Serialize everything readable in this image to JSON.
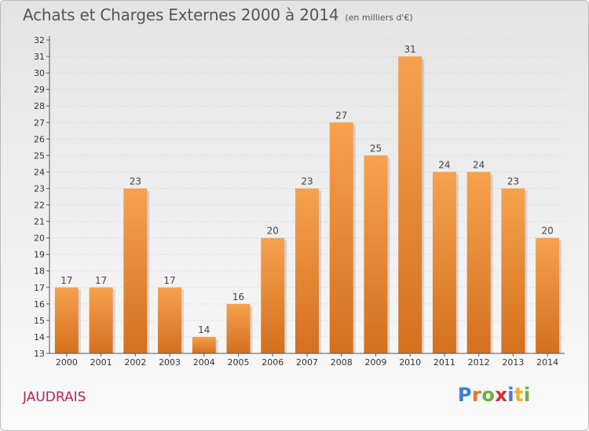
{
  "title": "Achats et Charges Externes 2000 à 2014",
  "unit_note": "(en milliers d'€)",
  "town": "JAUDRAIS",
  "logo": {
    "letters": [
      "P",
      "r",
      "o",
      "x",
      "i",
      "t",
      "i"
    ],
    "colors": [
      "#3b7fd4",
      "#e8732a",
      "#6db33f",
      "#d4302b",
      "#3b7fd4",
      "#f2b21b",
      "#6db33f"
    ]
  },
  "colors": {
    "bar_top": "#f6a14e",
    "bar_bottom": "#d4701f",
    "grid": "#cfcfcf"
  },
  "chart_data": {
    "type": "bar",
    "categories": [
      "2000",
      "2001",
      "2002",
      "2003",
      "2004",
      "2005",
      "2006",
      "2007",
      "2008",
      "2009",
      "2010",
      "2011",
      "2012",
      "2013",
      "2014"
    ],
    "values": [
      17,
      17,
      23,
      17,
      14,
      16,
      20,
      23,
      27,
      25,
      31,
      24,
      24,
      23,
      20
    ],
    "data_labels": [
      "17",
      "17",
      "23",
      "17",
      "14",
      "16",
      "20",
      "23",
      "27",
      "25",
      "31",
      "24",
      "24",
      "23",
      "20"
    ],
    "y_ticks": [
      "13",
      "14",
      "15",
      "16",
      "17",
      "18",
      "19",
      "20",
      "21",
      "22",
      "23",
      "24",
      "25",
      "26",
      "27",
      "28",
      "29",
      "30",
      "31",
      "32"
    ],
    "ylim": [
      13,
      32
    ],
    "grid": true
  }
}
